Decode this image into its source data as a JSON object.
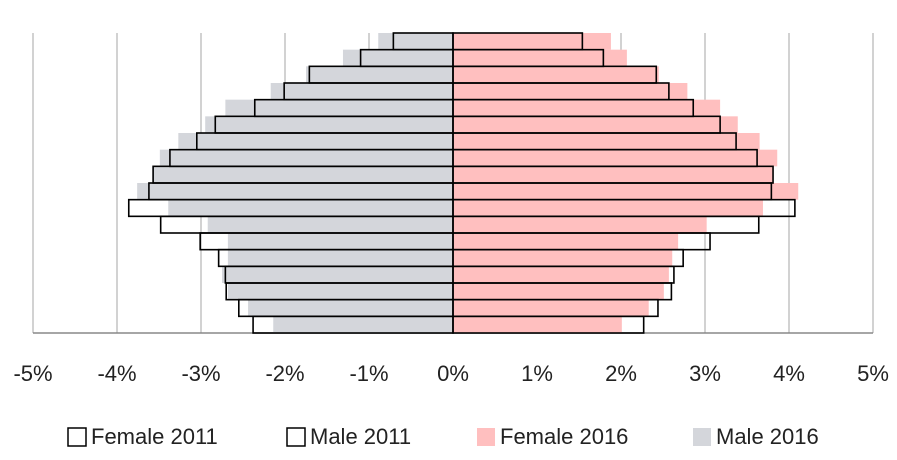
{
  "chart_data": {
    "type": "pyramid",
    "categories": [
      null,
      null,
      null,
      null,
      null,
      null,
      null,
      null,
      null,
      null,
      null,
      null,
      null,
      null,
      null,
      null,
      null,
      null
    ],
    "series": [
      {
        "name": "Female 2011",
        "color": "#ffffff",
        "edgecolor": "#000000",
        "values": [
          1.54,
          1.79,
          2.42,
          2.57,
          2.86,
          3.18,
          3.37,
          3.62,
          3.81,
          3.79,
          4.07,
          3.64,
          3.06,
          2.74,
          2.63,
          2.6,
          2.44,
          2.27
        ]
      },
      {
        "name": "Male 2011",
        "color": "#ffffff",
        "edgecolor": "#000000",
        "values": [
          -0.71,
          -1.1,
          -1.71,
          -2.01,
          -2.36,
          -2.83,
          -3.05,
          -3.37,
          -3.57,
          -3.62,
          -3.86,
          -3.48,
          -3.01,
          -2.79,
          -2.71,
          -2.7,
          -2.55,
          -2.38
        ]
      },
      {
        "name": "Female 2016",
        "color": "#ffbfbf",
        "values": [
          1.88,
          2.07,
          2.45,
          2.79,
          3.18,
          3.39,
          3.65,
          3.86,
          3.81,
          4.11,
          3.69,
          3.02,
          2.68,
          2.61,
          2.57,
          2.51,
          2.33,
          2.01
        ]
      },
      {
        "name": "Male 2016",
        "color": "#d4d6db",
        "values": [
          -0.89,
          -1.31,
          -1.75,
          -2.17,
          -2.71,
          -2.95,
          -3.27,
          -3.49,
          -3.58,
          -3.76,
          -3.39,
          -2.92,
          -2.68,
          -2.68,
          -2.75,
          -2.68,
          -2.44,
          -2.14
        ]
      }
    ],
    "xlim": [
      -5,
      5
    ],
    "xticks": [
      {
        "value": -5,
        "label": "-5%"
      },
      {
        "value": -4,
        "label": "-4%"
      },
      {
        "value": -3,
        "label": "-3%"
      },
      {
        "value": -2,
        "label": "-2%"
      },
      {
        "value": -1,
        "label": "-1%"
      },
      {
        "value": 0,
        "label": "0%"
      },
      {
        "value": 1,
        "label": "1%"
      },
      {
        "value": 2,
        "label": "2%"
      },
      {
        "value": 3,
        "label": "3%"
      },
      {
        "value": 4,
        "label": "4%"
      },
      {
        "value": 5,
        "label": "5%"
      }
    ],
    "grid": true,
    "legend": "bottom"
  }
}
